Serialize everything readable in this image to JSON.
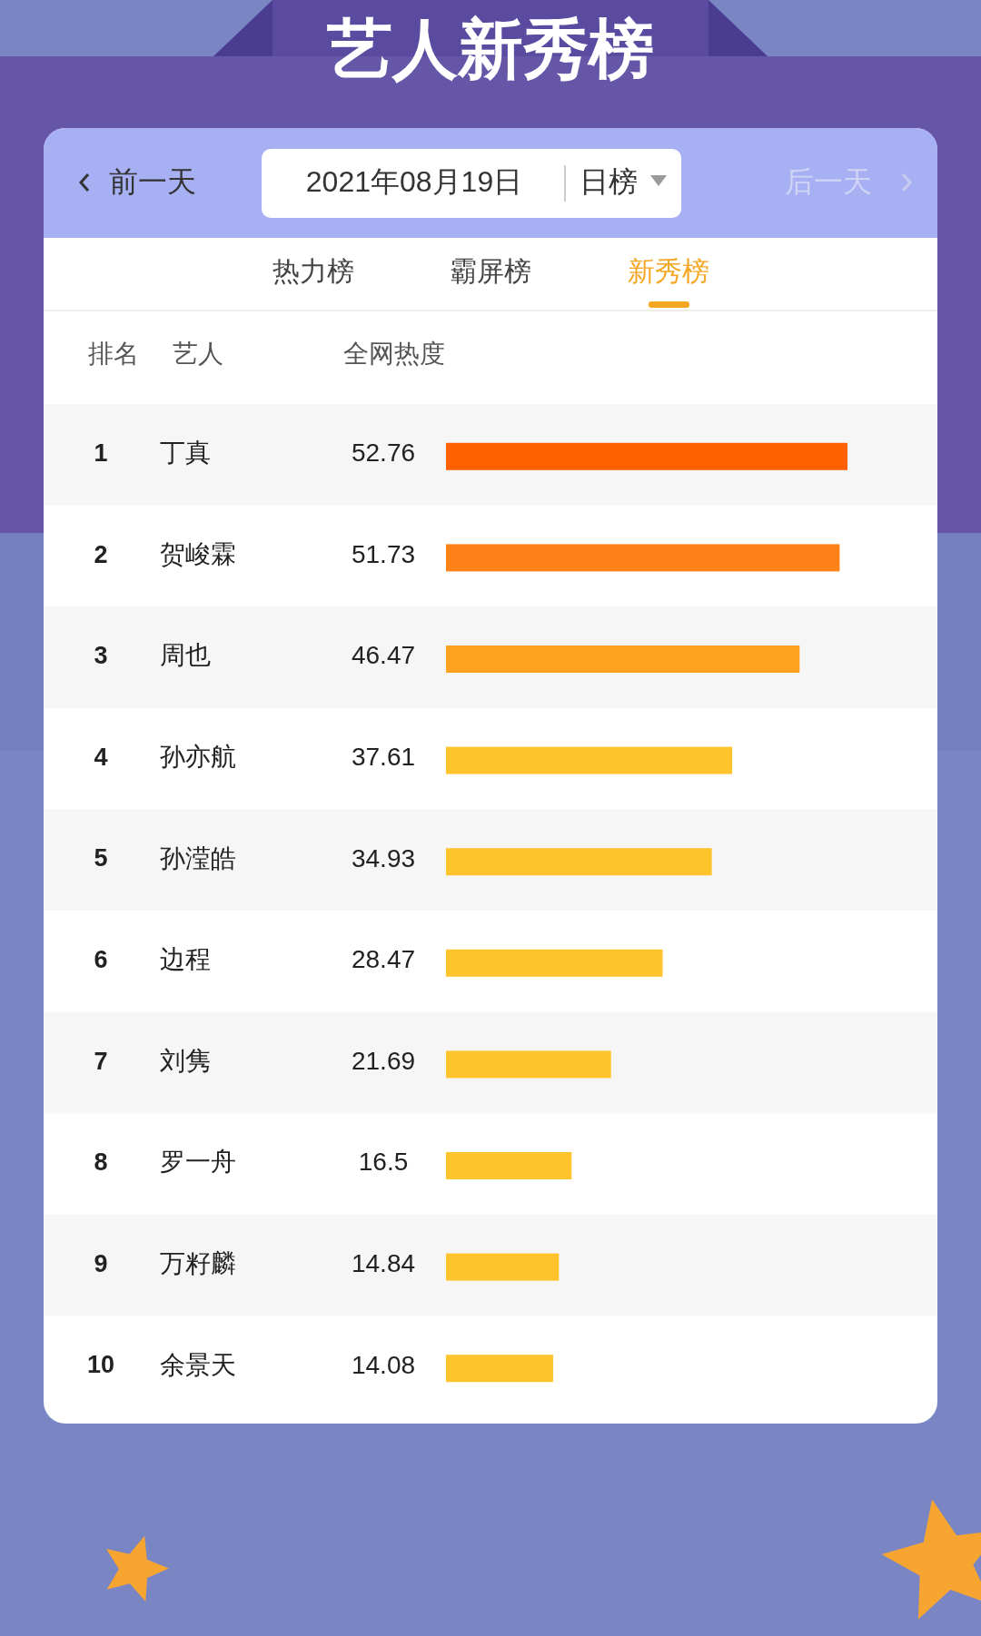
{
  "chart_data": {
    "type": "bar",
    "orientation": "horizontal",
    "data_labels": true,
    "title": "艺人新秀榜",
    "subtitle": "2021年08月19日",
    "annotations": [
      "前一天",
      "日榜",
      "后一天",
      "热力榜",
      "霸屏榜",
      "新秀榜",
      "排名",
      "艺人",
      "全网热度",
      "1",
      "2",
      "3",
      "4",
      "5",
      "6",
      "7",
      "8",
      "9",
      "10"
    ],
    "categories": [
      "丁真",
      "贺峻霖",
      "周也",
      "孙亦航",
      "孙滢皓",
      "边程",
      "刘隽",
      "罗一舟",
      "万籽麟",
      "余景天"
    ],
    "values": [
      52.76,
      51.73,
      46.47,
      37.61,
      34.93,
      28.47,
      21.69,
      16.5,
      14.84,
      14.08
    ],
    "colors": [
      "#ff6000",
      "#ff8218",
      "#ffa222",
      "#ffc42c",
      "#ffc42c",
      "#ffc42c",
      "#ffc42c",
      "#ffc42c",
      "#ffc42c",
      "#ffc42c"
    ]
  }
}
